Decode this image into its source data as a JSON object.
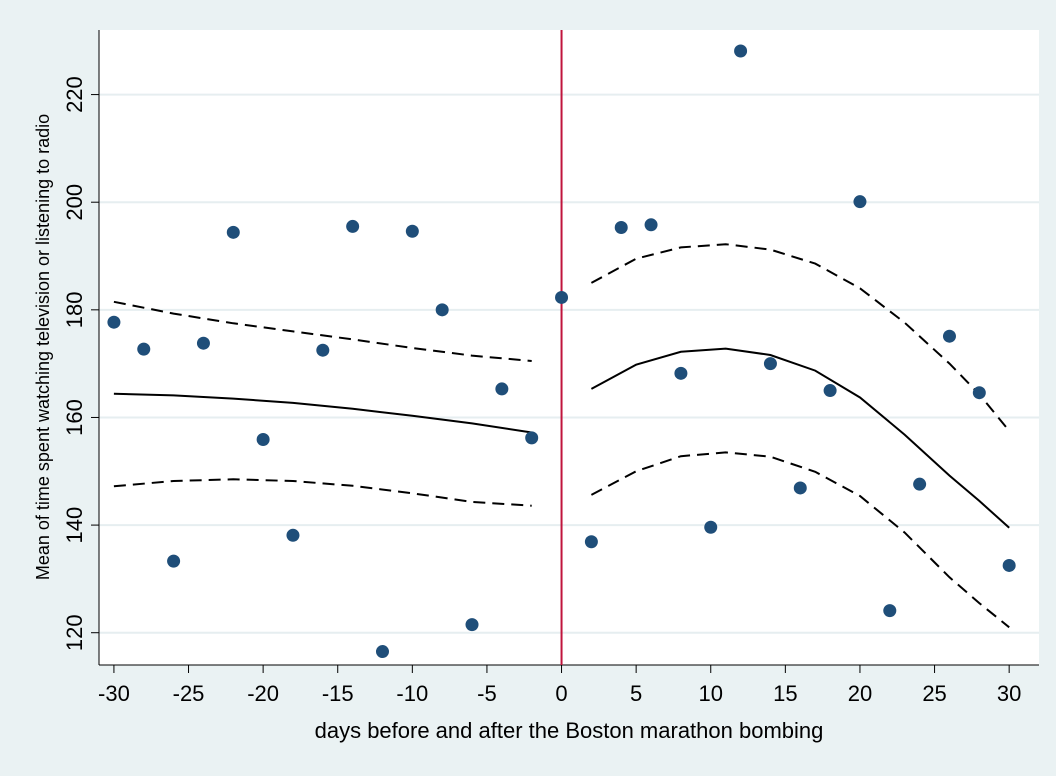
{
  "chart_data": {
    "type": "scatter",
    "title": "",
    "xlabel": "days before and after the Boston marathon bombing",
    "ylabel": "Mean of time spent watching television or listening to radio",
    "xlim": [
      -31,
      32
    ],
    "ylim": [
      114,
      232
    ],
    "xticks": [
      -30,
      -25,
      -20,
      -15,
      -10,
      -5,
      0,
      5,
      10,
      15,
      20,
      25,
      30
    ],
    "yticks": [
      120,
      140,
      160,
      180,
      200,
      220
    ],
    "grid": true,
    "cutoff_x": 0,
    "colors": {
      "points": "#1f4e79",
      "cutoff": "#c0143c",
      "fit": "#000000",
      "grid": "#e6eef0",
      "background": "#eaf2f3"
    },
    "points": {
      "x": [
        -30,
        -28,
        -26,
        -24,
        -22,
        -20,
        -18,
        -16,
        -14,
        -12,
        -10,
        -8,
        -6,
        -4,
        -2,
        0,
        2,
        4,
        6,
        8,
        10,
        12,
        14,
        16,
        18,
        20,
        22,
        24,
        26,
        28,
        30
      ],
      "y": [
        177.7,
        172.7,
        133.3,
        173.8,
        194.4,
        155.9,
        138.1,
        172.5,
        195.5,
        116.5,
        194.6,
        180.0,
        121.5,
        165.3,
        156.2,
        182.3,
        136.9,
        195.3,
        195.8,
        168.2,
        139.6,
        228.1,
        170.0,
        146.9,
        165.0,
        200.1,
        124.1,
        147.6,
        175.1,
        164.6,
        132.5
      ]
    },
    "fits": [
      {
        "segment": "before",
        "x": [
          -30,
          -26,
          -22,
          -18,
          -14,
          -10,
          -6,
          -2
        ],
        "fit": [
          164.4,
          164.1,
          163.5,
          162.7,
          161.6,
          160.3,
          158.9,
          157.2
        ],
        "ci_upper": [
          181.5,
          179.3,
          177.5,
          176.0,
          174.5,
          172.9,
          171.5,
          170.5
        ],
        "ci_lower": [
          147.2,
          148.2,
          148.5,
          148.2,
          147.3,
          145.9,
          144.3,
          143.6
        ]
      },
      {
        "segment": "after",
        "x": [
          2,
          5,
          8,
          11,
          14,
          17,
          20,
          23,
          26,
          28,
          30
        ],
        "fit": [
          165.3,
          169.8,
          172.2,
          172.8,
          171.6,
          168.7,
          163.7,
          156.8,
          149.2,
          144.5,
          139.5
        ],
        "ci_upper": [
          185.0,
          189.5,
          191.6,
          192.2,
          191.2,
          188.6,
          184.0,
          177.6,
          170.0,
          164.3,
          157.5
        ],
        "ci_lower": [
          145.6,
          150.0,
          152.8,
          153.5,
          152.7,
          149.9,
          145.4,
          138.6,
          130.3,
          125.5,
          121.0
        ]
      }
    ]
  }
}
